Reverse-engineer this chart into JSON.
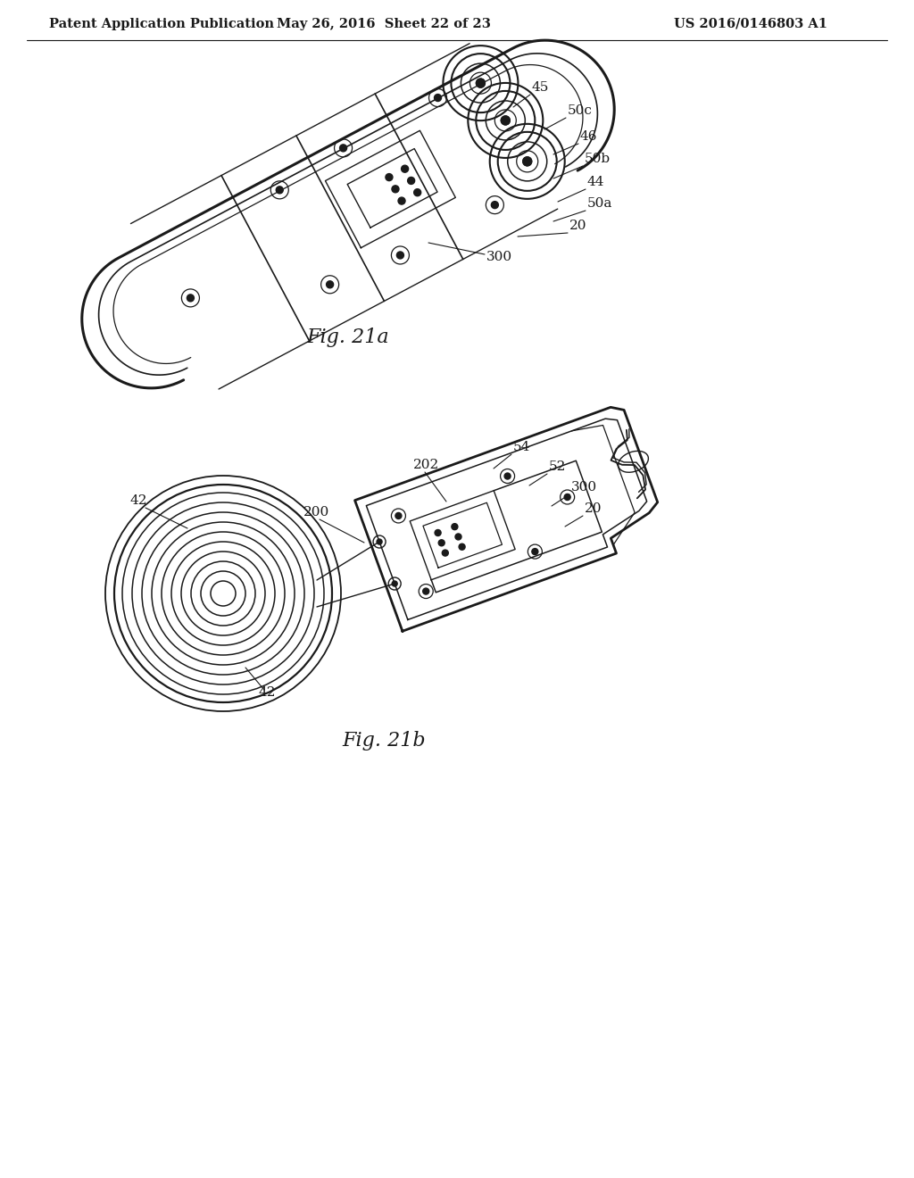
{
  "background_color": "#ffffff",
  "header_left": "Patent Application Publication",
  "header_mid": "May 26, 2016  Sheet 22 of 23",
  "header_right": "US 2016/0146803 A1",
  "fig_a_caption": "Fig. 21a",
  "fig_b_caption": "Fig. 21b",
  "line_color": "#1a1a1a",
  "line_width": 1.4,
  "label_fontsize": 11,
  "header_fontsize": 10.5,
  "caption_fontsize": 16
}
